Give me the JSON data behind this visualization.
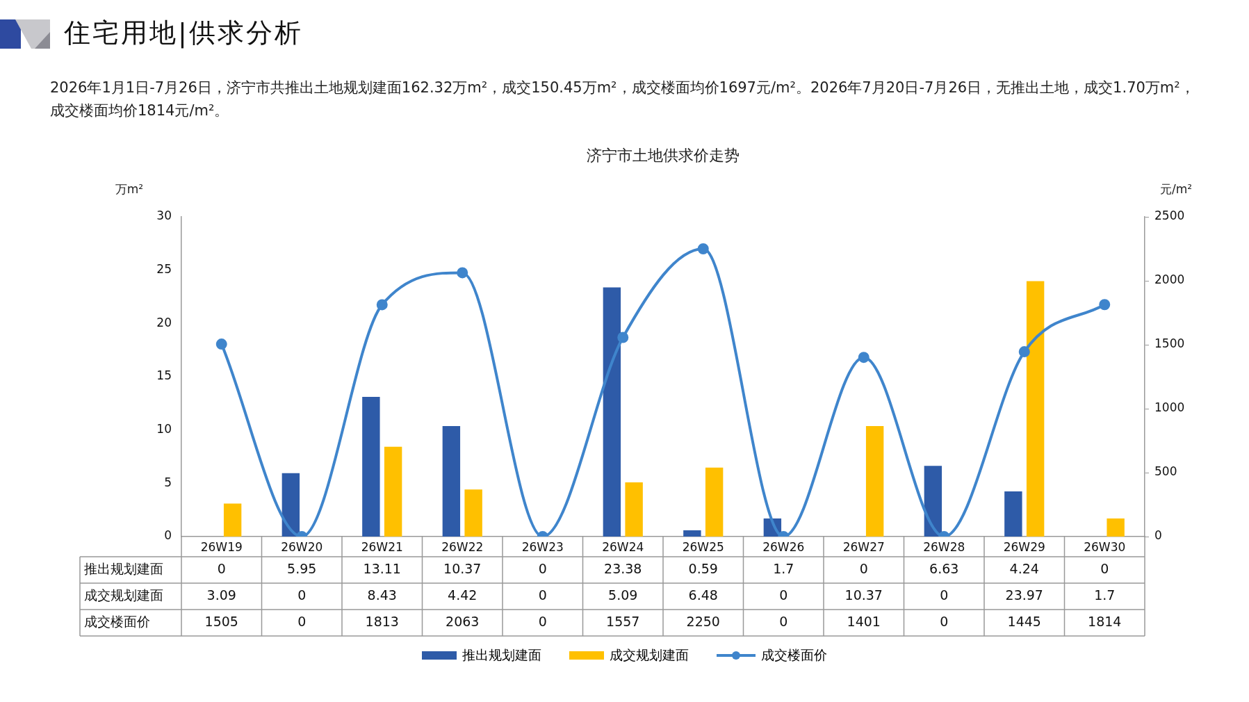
{
  "chart_data": {
    "type": "bar",
    "title": "住宅用地|供求分析",
    "subtitle": "2026年1月1日-7月26日，济宁市共推出土地规划建面162.32万m²，成交150.45万m²，成交楼面均价1697元/m²。2026年7月20日-7月26日，无推出土地，成交1.70万m²，成交楼面均价1814元/m²。",
    "annotations": [
      "济宁市土地供求价走势"
    ],
    "ylabel": "万m²",
    "y2label": "元/m²",
    "categories": [
      "26W19",
      "26W20",
      "26W21",
      "26W22",
      "26W23",
      "26W24",
      "26W25",
      "26W26",
      "26W27",
      "26W28",
      "26W29",
      "26W30"
    ],
    "series": [
      {
        "name": "推出规划建面",
        "color": "#2e5ba8",
        "values": [
          0,
          5.95,
          13.11,
          10.37,
          0,
          23.38,
          0.59,
          1.7,
          0,
          6.63,
          4.24,
          0
        ]
      },
      {
        "name": "成交规划建面",
        "color": "#ffc000",
        "values": [
          3.09,
          0,
          8.43,
          4.42,
          0,
          5.09,
          6.48,
          0,
          10.37,
          0,
          23.97,
          1.7
        ]
      },
      {
        "name": "成交楼面价",
        "type": "line",
        "axis": "y2",
        "marker": "circle",
        "color": "#3f85cc",
        "values": [
          1505,
          0,
          1813,
          2063,
          0,
          1557,
          2250,
          0,
          1401,
          0,
          1445,
          1814
        ]
      }
    ],
    "ylim": [
      0,
      30
    ],
    "yticks": [
      0,
      5,
      10,
      15,
      20,
      25,
      30
    ],
    "y2lim": [
      0,
      2500
    ],
    "y2ticks": [
      0,
      500,
      1000,
      1500,
      2000,
      2500
    ],
    "grid": false,
    "legend": "bottom",
    "data_labels": true
  }
}
